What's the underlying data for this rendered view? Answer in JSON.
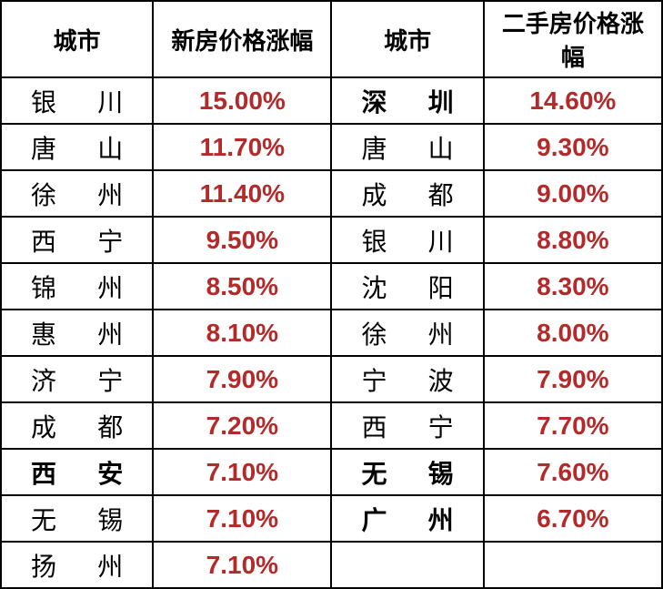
{
  "headers": {
    "city1": "城市",
    "value1": "新房价格涨幅",
    "city2": "城市",
    "value2": "二手房价格涨幅"
  },
  "value_color": "#b42929",
  "text_color": "#000000",
  "border_color": "#000000",
  "rows": [
    {
      "city1": {
        "c1": "银",
        "c2": "川",
        "bold": false
      },
      "value1": "15.00%",
      "city2": {
        "c1": "深",
        "c2": "圳",
        "bold": true
      },
      "value2": "14.60%"
    },
    {
      "city1": {
        "c1": "唐",
        "c2": "山",
        "bold": false
      },
      "value1": "11.70%",
      "city2": {
        "c1": "唐",
        "c2": "山",
        "bold": false
      },
      "value2": "9.30%"
    },
    {
      "city1": {
        "c1": "徐",
        "c2": "州",
        "bold": false
      },
      "value1": "11.40%",
      "city2": {
        "c1": "成",
        "c2": "都",
        "bold": false
      },
      "value2": "9.00%"
    },
    {
      "city1": {
        "c1": "西",
        "c2": "宁",
        "bold": false
      },
      "value1": "9.50%",
      "city2": {
        "c1": "银",
        "c2": "川",
        "bold": false
      },
      "value2": "8.80%"
    },
    {
      "city1": {
        "c1": "锦",
        "c2": "州",
        "bold": false
      },
      "value1": "8.50%",
      "city2": {
        "c1": "沈",
        "c2": "阳",
        "bold": false
      },
      "value2": "8.30%"
    },
    {
      "city1": {
        "c1": "惠",
        "c2": "州",
        "bold": false
      },
      "value1": "8.10%",
      "city2": {
        "c1": "徐",
        "c2": "州",
        "bold": false
      },
      "value2": "8.00%"
    },
    {
      "city1": {
        "c1": "济",
        "c2": "宁",
        "bold": false
      },
      "value1": "7.90%",
      "city2": {
        "c1": "宁",
        "c2": "波",
        "bold": false
      },
      "value2": "7.90%"
    },
    {
      "city1": {
        "c1": "成",
        "c2": "都",
        "bold": false
      },
      "value1": "7.20%",
      "city2": {
        "c1": "西",
        "c2": "宁",
        "bold": false
      },
      "value2": "7.70%"
    },
    {
      "city1": {
        "c1": "西",
        "c2": "安",
        "bold": true
      },
      "value1": "7.10%",
      "city2": {
        "c1": "无",
        "c2": "锡",
        "bold": true
      },
      "value2": "7.60%"
    },
    {
      "city1": {
        "c1": "无",
        "c2": "锡",
        "bold": false
      },
      "value1": "7.10%",
      "city2": {
        "c1": "广",
        "c2": "州",
        "bold": true
      },
      "value2": "6.70%"
    },
    {
      "city1": {
        "c1": "扬",
        "c2": "州",
        "bold": false
      },
      "value1": "7.10%",
      "city2": null,
      "value2": null
    }
  ]
}
